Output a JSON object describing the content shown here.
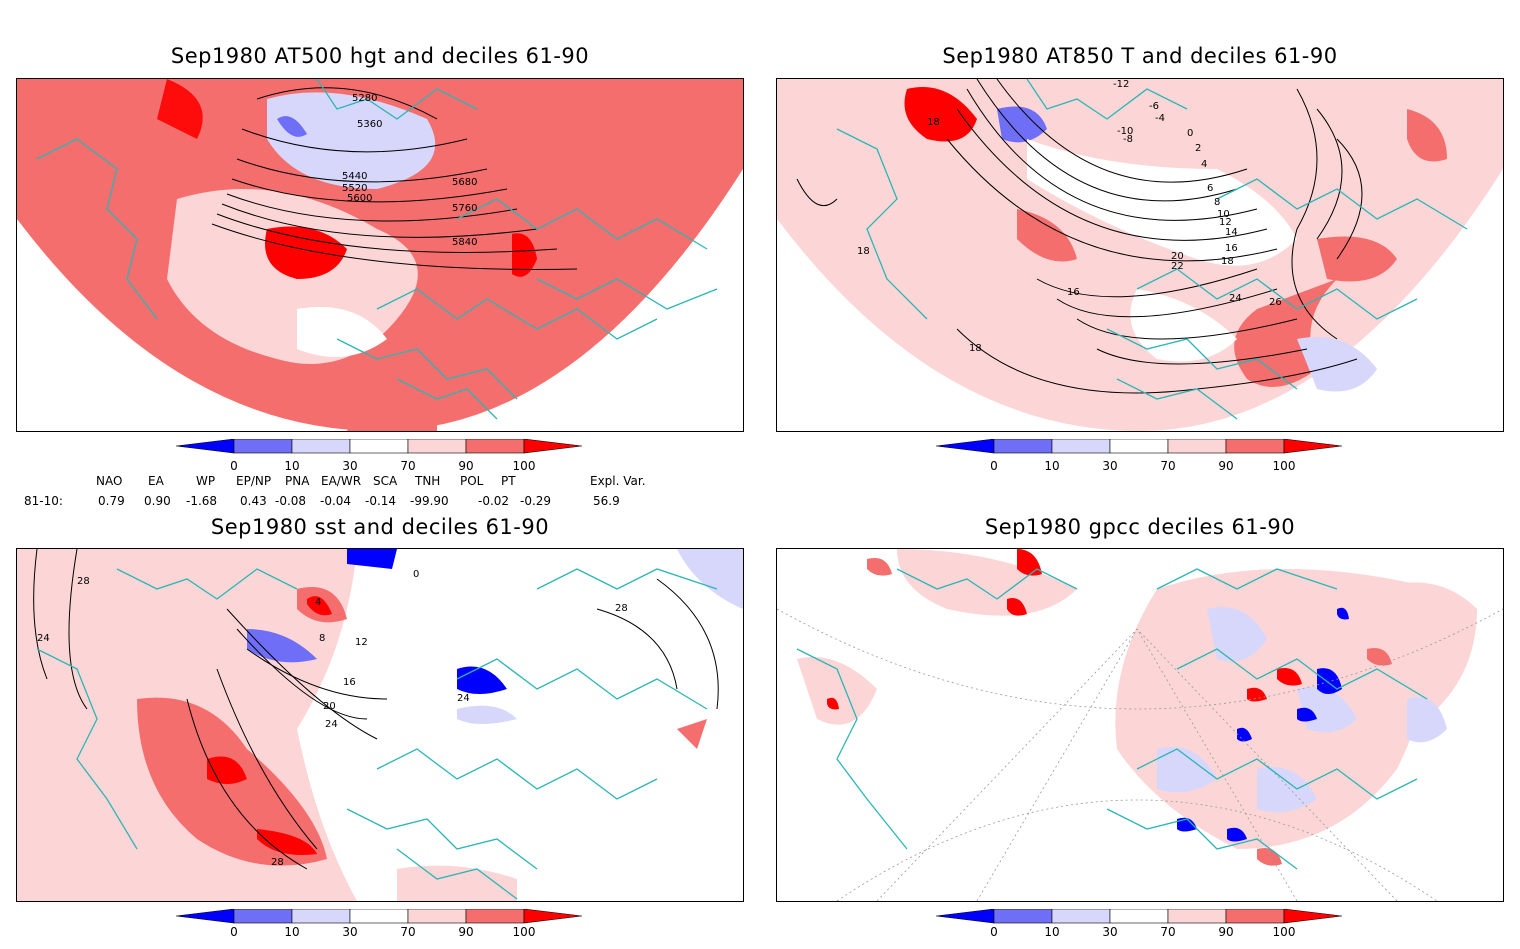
{
  "colors": {
    "dark_blue": "#0000ff",
    "mid_blue": "#6e6ef7",
    "light_blue": "#d7d7fb",
    "light_red": "#fcd6d6",
    "mid_red": "#f56e6e",
    "dark_red": "#ff0000",
    "coast": "#2ab6b6"
  },
  "panels": [
    {
      "id": "p1",
      "title": "Sep1980 AT500 hgt and deciles 61-90",
      "contour_labels": [
        "5280",
        "5360",
        "5440",
        "5520",
        "5600",
        "5680",
        "5760",
        "5840"
      ]
    },
    {
      "id": "p2",
      "title": "Sep1980 AT850 T and deciles 61-90",
      "contour_labels": [
        "-12",
        "-6",
        "-4",
        "-10",
        "-8",
        "0",
        "2",
        "4",
        "6",
        "8",
        "10",
        "12",
        "14",
        "16",
        "18",
        "20",
        "22",
        "24",
        "26",
        "18",
        "16",
        "18",
        "18"
      ]
    },
    {
      "id": "p3",
      "title": "Sep1980 sst and deciles 61-90",
      "contour_labels": [
        "28",
        "24",
        "0",
        "4",
        "8",
        "12",
        "16",
        "20",
        "24",
        "28",
        "28",
        "24"
      ]
    },
    {
      "id": "p4",
      "title": "Sep1980 gpcc deciles 61-90",
      "contour_labels": []
    }
  ],
  "colorbar": {
    "ticks": [
      "0",
      "10",
      "30",
      "70",
      "90",
      "100"
    ]
  },
  "indices": {
    "headers": [
      "NAO",
      "EA",
      "WP",
      "EP/NP",
      "PNA",
      "EA/WR",
      "SCA",
      "TNH",
      "POL",
      "PT",
      "Expl. Var."
    ],
    "row_label": "81-10:",
    "values": [
      "0.79",
      "0.90",
      "-1.68",
      "0.43",
      "-0.08",
      "-0.04",
      "-0.14",
      "-99.90",
      "-0.02",
      "-0.29",
      "56.9"
    ]
  }
}
